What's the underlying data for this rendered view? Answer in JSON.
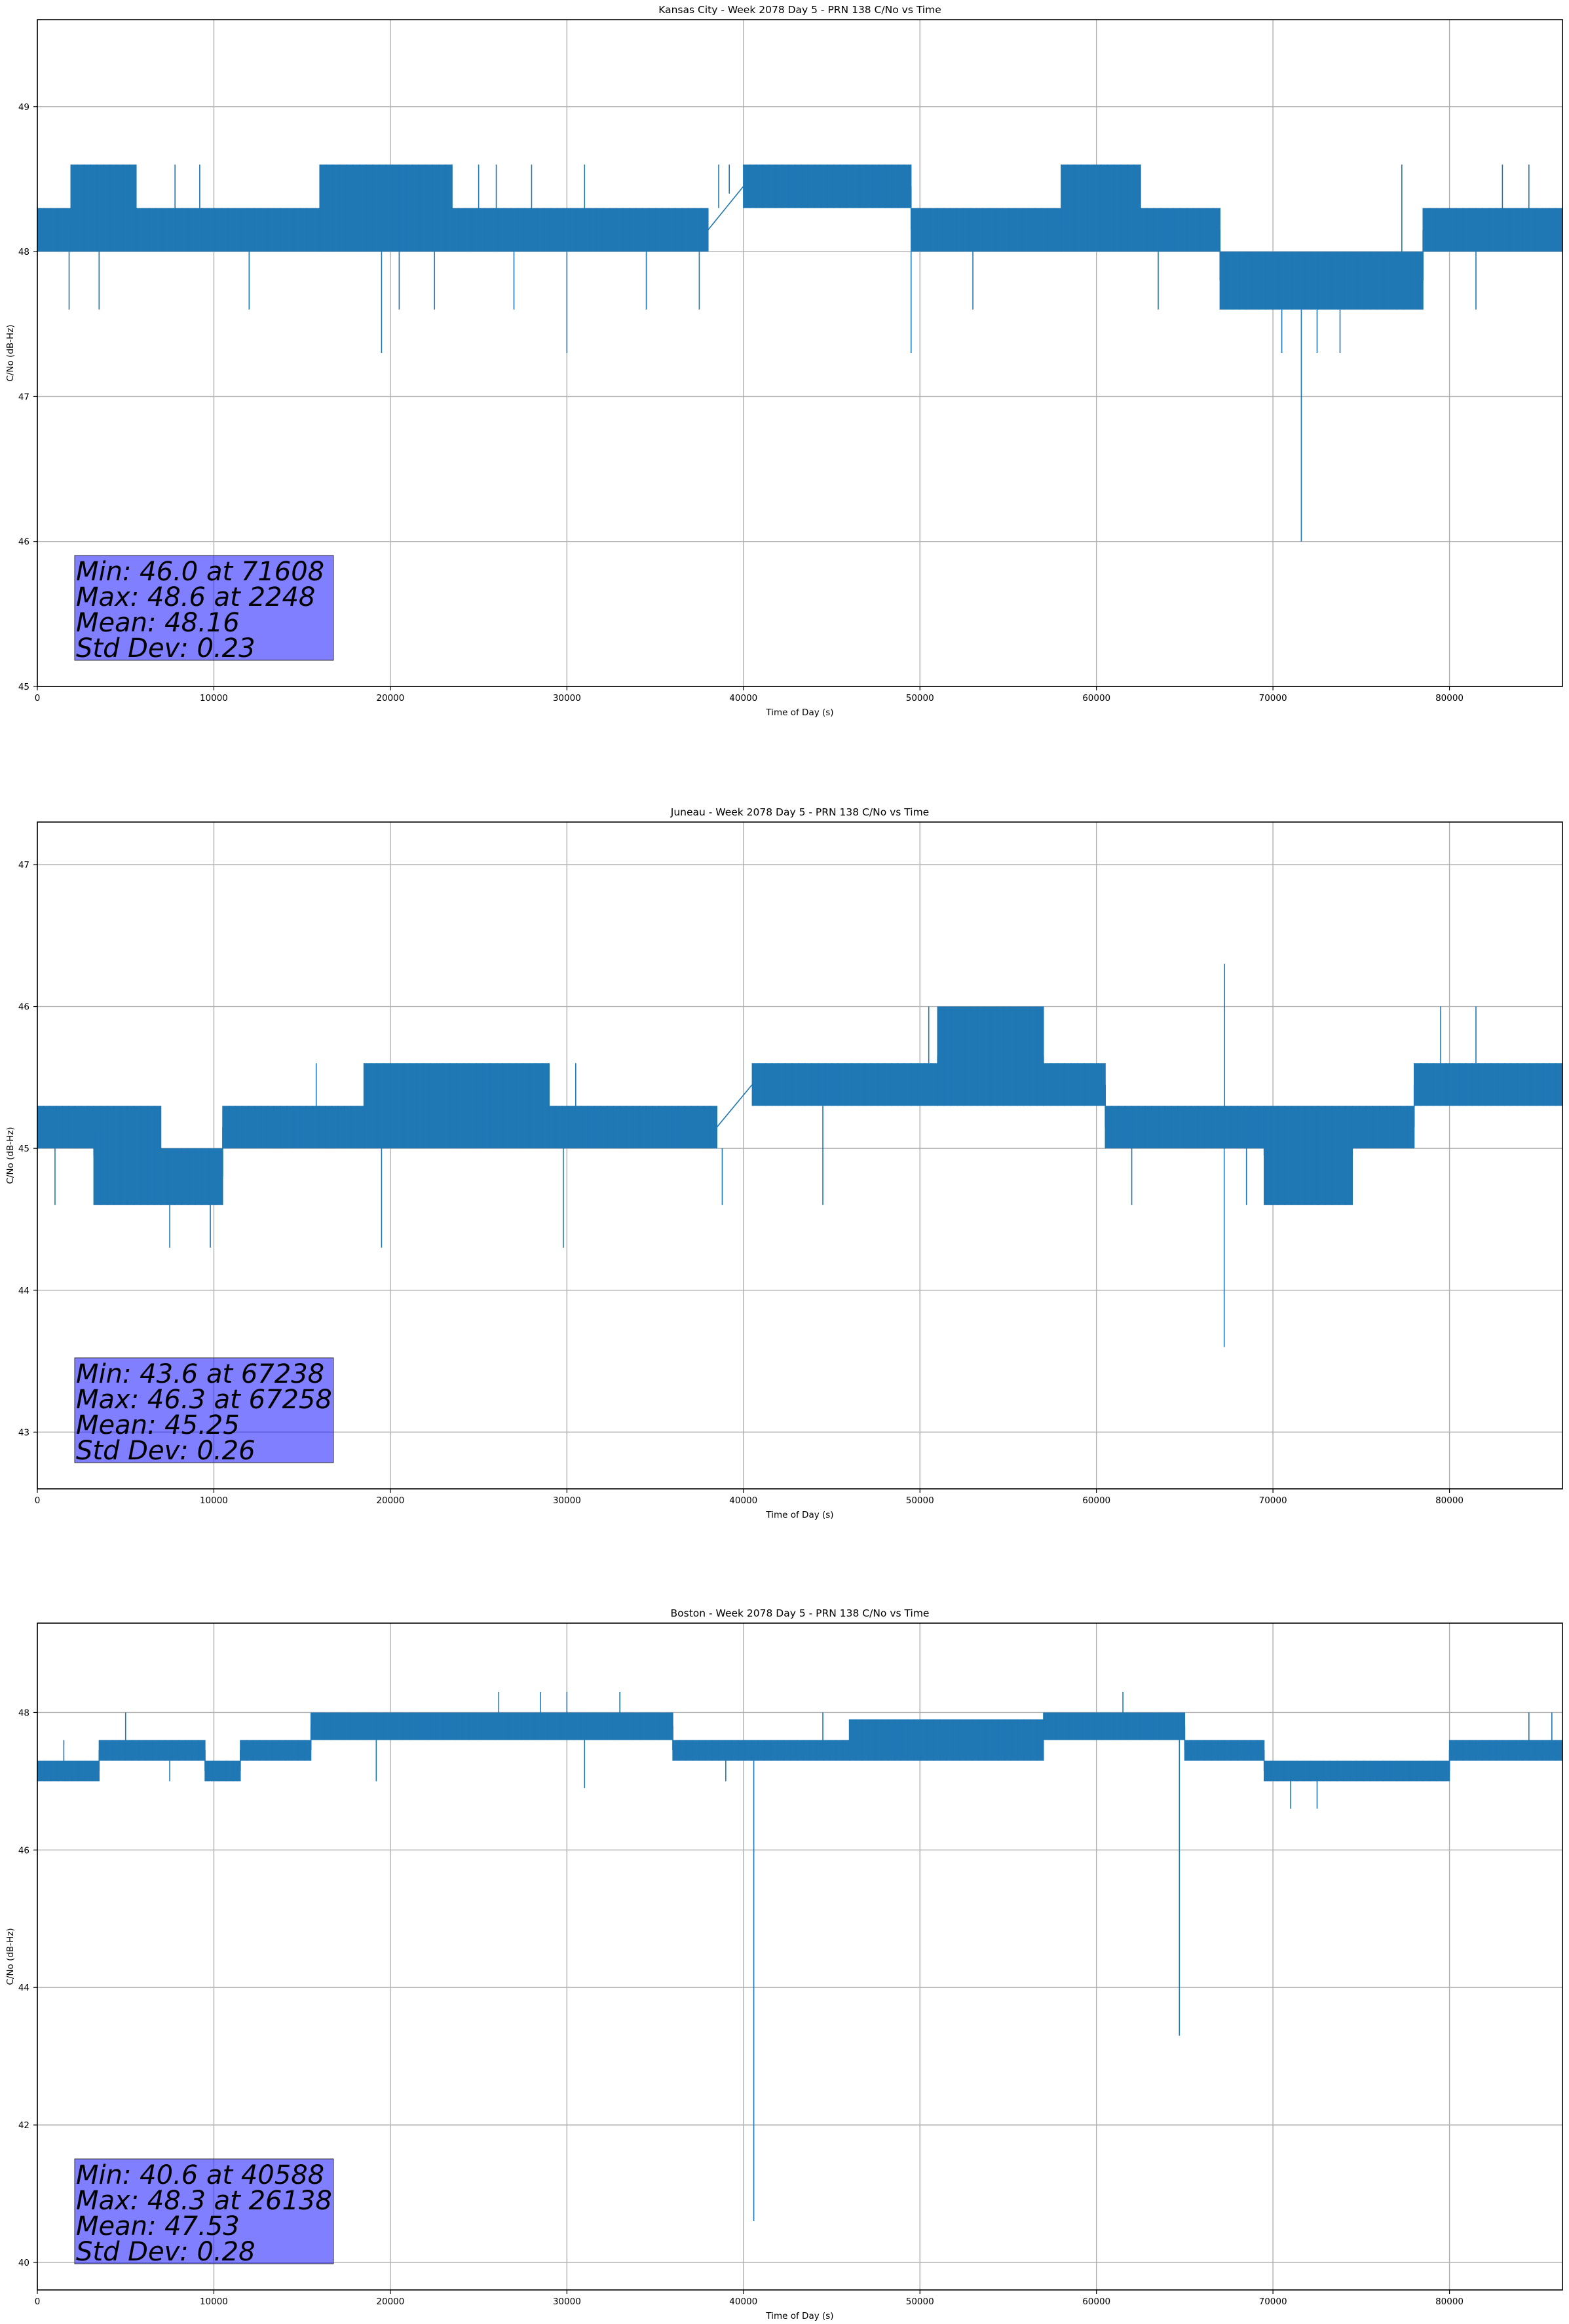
{
  "chart_data": [
    {
      "type": "line",
      "title": "Kansas City - Week 2078 Day 5 - PRN 138 C/No vs Time",
      "xlabel": "Time of Day (s)",
      "ylabel": "C/No (dB-Hz)",
      "xlim": [
        0,
        86400
      ],
      "ylim": [
        45,
        49.6
      ],
      "xticks": [
        0,
        10000,
        20000,
        30000,
        40000,
        50000,
        60000,
        70000,
        80000
      ],
      "xtick_labels": [
        "0",
        "10000",
        "20000",
        "30000",
        "40000",
        "50000",
        "60000",
        "70000",
        "80000"
      ],
      "yticks": [
        45,
        46,
        47,
        48,
        49
      ],
      "ytick_labels": [
        "45",
        "46",
        "47",
        "48",
        "49"
      ],
      "grid": true,
      "color": "#1f77b4",
      "series": [
        {
          "segments": [
            {
              "x0": 0,
              "x1": 1900,
              "low": 48.0,
              "high": 48.3
            },
            {
              "x0": 1900,
              "x1": 5600,
              "low": 48.0,
              "high": 48.6
            },
            {
              "x0": 5600,
              "x1": 16000,
              "low": 48.0,
              "high": 48.3
            },
            {
              "x0": 16000,
              "x1": 23500,
              "low": 48.0,
              "high": 48.6
            },
            {
              "x0": 23500,
              "x1": 38000,
              "low": 48.0,
              "high": 48.3
            },
            {
              "x0": 40000,
              "x1": 49500,
              "low": 48.3,
              "high": 48.6
            },
            {
              "x0": 49500,
              "x1": 58000,
              "low": 48.0,
              "high": 48.3
            },
            {
              "x0": 58000,
              "x1": 62500,
              "low": 48.0,
              "high": 48.6
            },
            {
              "x0": 62500,
              "x1": 67000,
              "low": 48.0,
              "high": 48.3
            },
            {
              "x0": 67000,
              "x1": 78500,
              "low": 47.6,
              "high": 48.0
            },
            {
              "x0": 78500,
              "x1": 86400,
              "low": 48.0,
              "high": 48.3
            }
          ],
          "spikes": [
            {
              "x": 2248,
              "y": 48.6
            },
            {
              "x": 1800,
              "y": 47.6
            },
            {
              "x": 2000,
              "y": 48.6
            },
            {
              "x": 3500,
              "y": 47.6
            },
            {
              "x": 4500,
              "y": 48.6
            },
            {
              "x": 7800,
              "y": 48.6
            },
            {
              "x": 9200,
              "y": 48.6
            },
            {
              "x": 12000,
              "y": 47.6
            },
            {
              "x": 19500,
              "y": 47.3
            },
            {
              "x": 20500,
              "y": 47.6
            },
            {
              "x": 22500,
              "y": 47.6
            },
            {
              "x": 25000,
              "y": 48.6
            },
            {
              "x": 26000,
              "y": 48.6
            },
            {
              "x": 27000,
              "y": 47.6
            },
            {
              "x": 28000,
              "y": 48.6
            },
            {
              "x": 30000,
              "y": 47.3
            },
            {
              "x": 31000,
              "y": 48.6
            },
            {
              "x": 34500,
              "y": 47.6
            },
            {
              "x": 37500,
              "y": 47.6
            },
            {
              "x": 38600,
              "y": 48.6
            },
            {
              "x": 39200,
              "y": 48.4
            },
            {
              "x": 49500,
              "y": 47.3
            },
            {
              "x": 53000,
              "y": 47.6
            },
            {
              "x": 63500,
              "y": 47.6
            },
            {
              "x": 70500,
              "y": 47.3
            },
            {
              "x": 71608,
              "y": 46.0
            },
            {
              "x": 72500,
              "y": 47.3
            },
            {
              "x": 73800,
              "y": 47.3
            },
            {
              "x": 77300,
              "y": 48.6
            },
            {
              "x": 81500,
              "y": 47.6
            },
            {
              "x": 83000,
              "y": 48.6
            },
            {
              "x": 84500,
              "y": 48.6
            }
          ]
        }
      ],
      "stats_lines": [
        "Min: 46.0 at 71608",
        "Max: 48.6 at 2248",
        "Mean: 48.16",
        "Std Dev: 0.23"
      ]
    },
    {
      "type": "line",
      "title": "Juneau - Week 2078 Day 5 - PRN 138 C/No vs Time",
      "xlabel": "Time of Day (s)",
      "ylabel": "C/No (dB-Hz)",
      "xlim": [
        0,
        86400
      ],
      "ylim": [
        42.6,
        47.3
      ],
      "xticks": [
        0,
        10000,
        20000,
        30000,
        40000,
        50000,
        60000,
        70000,
        80000
      ],
      "xtick_labels": [
        "0",
        "10000",
        "20000",
        "30000",
        "40000",
        "50000",
        "60000",
        "70000",
        "80000"
      ],
      "yticks": [
        43,
        44,
        45,
        46,
        47
      ],
      "ytick_labels": [
        "43",
        "44",
        "45",
        "46",
        "47"
      ],
      "grid": true,
      "color": "#1f77b4",
      "series": [
        {
          "segments": [
            {
              "x0": 0,
              "x1": 3200,
              "low": 45.0,
              "high": 45.3
            },
            {
              "x0": 3200,
              "x1": 7000,
              "low": 44.6,
              "high": 45.3
            },
            {
              "x0": 7000,
              "x1": 10500,
              "low": 44.6,
              "high": 45.0
            },
            {
              "x0": 10500,
              "x1": 18500,
              "low": 45.0,
              "high": 45.3
            },
            {
              "x0": 18500,
              "x1": 29000,
              "low": 45.0,
              "high": 45.6
            },
            {
              "x0": 29000,
              "x1": 38500,
              "low": 45.0,
              "high": 45.3
            },
            {
              "x0": 40500,
              "x1": 51000,
              "low": 45.3,
              "high": 45.6
            },
            {
              "x0": 51000,
              "x1": 57000,
              "low": 45.3,
              "high": 46.0
            },
            {
              "x0": 57000,
              "x1": 60500,
              "low": 45.3,
              "high": 45.6
            },
            {
              "x0": 60500,
              "x1": 69500,
              "low": 45.0,
              "high": 45.3
            },
            {
              "x0": 69500,
              "x1": 74500,
              "low": 44.6,
              "high": 45.3
            },
            {
              "x0": 74500,
              "x1": 78000,
              "low": 45.0,
              "high": 45.3
            },
            {
              "x0": 78000,
              "x1": 86400,
              "low": 45.3,
              "high": 45.6
            }
          ],
          "spikes": [
            {
              "x": 1000,
              "y": 44.6
            },
            {
              "x": 7500,
              "y": 44.3
            },
            {
              "x": 9800,
              "y": 44.3
            },
            {
              "x": 15800,
              "y": 45.6
            },
            {
              "x": 19500,
              "y": 44.3
            },
            {
              "x": 29800,
              "y": 44.3
            },
            {
              "x": 30500,
              "y": 45.6
            },
            {
              "x": 38800,
              "y": 44.6
            },
            {
              "x": 44500,
              "y": 44.6
            },
            {
              "x": 50500,
              "y": 46.0
            },
            {
              "x": 62000,
              "y": 44.6
            },
            {
              "x": 67238,
              "y": 43.6
            },
            {
              "x": 67258,
              "y": 46.3
            },
            {
              "x": 68500,
              "y": 44.6
            },
            {
              "x": 72500,
              "y": 44.6
            },
            {
              "x": 79500,
              "y": 46.0
            },
            {
              "x": 81500,
              "y": 46.0
            }
          ]
        }
      ],
      "stats_lines": [
        "Min: 43.6 at 67238",
        "Max: 46.3 at 67258",
        "Mean: 45.25",
        "Std Dev: 0.26"
      ]
    },
    {
      "type": "line",
      "title": "Boston - Week 2078 Day 5 - PRN 138 C/No vs Time",
      "xlabel": "Time of Day (s)",
      "ylabel": "C/No (dB-Hz)",
      "xlim": [
        0,
        86400
      ],
      "ylim": [
        39.6,
        49.3
      ],
      "xticks": [
        0,
        10000,
        20000,
        30000,
        40000,
        50000,
        60000,
        70000,
        80000
      ],
      "xtick_labels": [
        "0",
        "10000",
        "20000",
        "30000",
        "40000",
        "50000",
        "60000",
        "70000",
        "80000"
      ],
      "yticks": [
        40,
        42,
        44,
        46,
        48
      ],
      "ytick_labels": [
        "40",
        "42",
        "44",
        "46",
        "48"
      ],
      "grid": true,
      "color": "#1f77b4",
      "series": [
        {
          "segments": [
            {
              "x0": 0,
              "x1": 3500,
              "low": 47.0,
              "high": 47.3
            },
            {
              "x0": 3500,
              "x1": 9500,
              "low": 47.3,
              "high": 47.6
            },
            {
              "x0": 9500,
              "x1": 11500,
              "low": 47.0,
              "high": 47.3
            },
            {
              "x0": 11500,
              "x1": 15500,
              "low": 47.3,
              "high": 47.6
            },
            {
              "x0": 15500,
              "x1": 36000,
              "low": 47.6,
              "high": 48.0
            },
            {
              "x0": 36000,
              "x1": 46000,
              "low": 47.3,
              "high": 47.6
            },
            {
              "x0": 46000,
              "x1": 57000,
              "low": 47.3,
              "high": 47.9
            },
            {
              "x0": 57000,
              "x1": 65000,
              "low": 47.6,
              "high": 48.0
            },
            {
              "x0": 65000,
              "x1": 69500,
              "low": 47.3,
              "high": 47.6
            },
            {
              "x0": 69500,
              "x1": 80000,
              "low": 47.0,
              "high": 47.3
            },
            {
              "x0": 80000,
              "x1": 86400,
              "low": 47.3,
              "high": 47.6
            }
          ],
          "spikes": [
            {
              "x": 1500,
              "y": 47.6
            },
            {
              "x": 5000,
              "y": 48.0
            },
            {
              "x": 7500,
              "y": 47.0
            },
            {
              "x": 19200,
              "y": 47.0
            },
            {
              "x": 26138,
              "y": 48.3
            },
            {
              "x": 28500,
              "y": 48.3
            },
            {
              "x": 30000,
              "y": 48.3
            },
            {
              "x": 31000,
              "y": 46.9
            },
            {
              "x": 33000,
              "y": 48.3
            },
            {
              "x": 39000,
              "y": 47.0
            },
            {
              "x": 40588,
              "y": 40.6
            },
            {
              "x": 44500,
              "y": 48.0
            },
            {
              "x": 61500,
              "y": 48.3
            },
            {
              "x": 64700,
              "y": 43.3
            },
            {
              "x": 71000,
              "y": 46.6
            },
            {
              "x": 72500,
              "y": 46.6
            },
            {
              "x": 84500,
              "y": 48.0
            },
            {
              "x": 85800,
              "y": 48.0
            }
          ]
        }
      ],
      "stats_lines": [
        "Min: 40.6 at 40588",
        "Max: 48.3 at 26138",
        "Mean: 47.53",
        "Std Dev: 0.28"
      ]
    }
  ]
}
